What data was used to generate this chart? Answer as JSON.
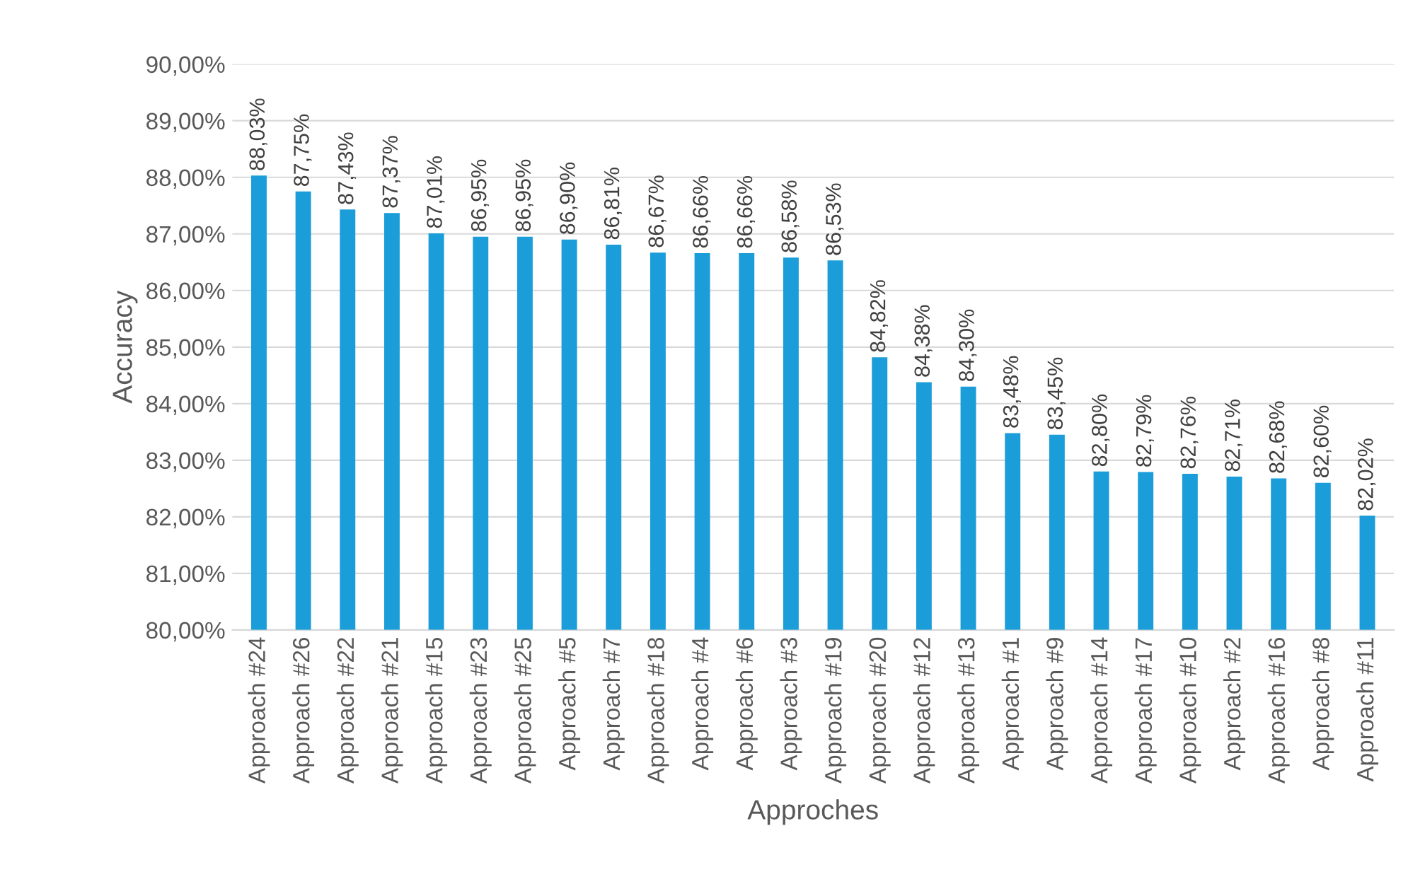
{
  "chart_data": {
    "type": "bar",
    "xlabel": "Approches",
    "ylabel": "Accuracy",
    "categories": [
      "Approach #24",
      "Approach #26",
      "Approach #22",
      "Approach #21",
      "Approach #15",
      "Approach #23",
      "Approach #25",
      "Approach #5",
      "Approach #7",
      "Approach #18",
      "Approach #4",
      "Approach #6",
      "Approach #3",
      "Approach #19",
      "Approach #20",
      "Approach #12",
      "Approach #13",
      "Approach #1",
      "Approach #9",
      "Approach #14",
      "Approach #17",
      "Approach #10",
      "Approach #2",
      "Approach #16",
      "Approach #8",
      "Approach #11"
    ],
    "values": [
      88.03,
      87.75,
      87.43,
      87.37,
      87.01,
      86.95,
      86.95,
      86.9,
      86.81,
      86.67,
      86.66,
      86.66,
      86.58,
      86.53,
      84.82,
      84.38,
      84.3,
      83.48,
      83.45,
      82.8,
      82.79,
      82.76,
      82.71,
      82.68,
      82.6,
      82.02
    ],
    "value_labels": [
      "88,03%",
      "87,75%",
      "87,43%",
      "87,37%",
      "87,01%",
      "86,95%",
      "86,95%",
      "86,90%",
      "86,81%",
      "86,67%",
      "86,66%",
      "86,66%",
      "86,58%",
      "86,53%",
      "84,82%",
      "84,38%",
      "84,30%",
      "83,48%",
      "83,45%",
      "82,80%",
      "82,79%",
      "82,76%",
      "82,71%",
      "82,68%",
      "82,60%",
      "82,02%"
    ],
    "color": "#1a9dd9",
    "ylim": [
      80,
      90
    ],
    "yticks": [
      {
        "value": 80,
        "label": "80,00%"
      },
      {
        "value": 81,
        "label": "81,00%"
      },
      {
        "value": 82,
        "label": "82,00%"
      },
      {
        "value": 83,
        "label": "83,00%"
      },
      {
        "value": 84,
        "label": "84,00%"
      },
      {
        "value": 85,
        "label": "85,00%"
      },
      {
        "value": 86,
        "label": "86,00%"
      },
      {
        "value": 87,
        "label": "87,00%"
      },
      {
        "value": 88,
        "label": "88,00%"
      },
      {
        "value": 89,
        "label": "89,00%"
      },
      {
        "value": 90,
        "label": "90,00%"
      }
    ],
    "grid": "y",
    "legend": false
  }
}
